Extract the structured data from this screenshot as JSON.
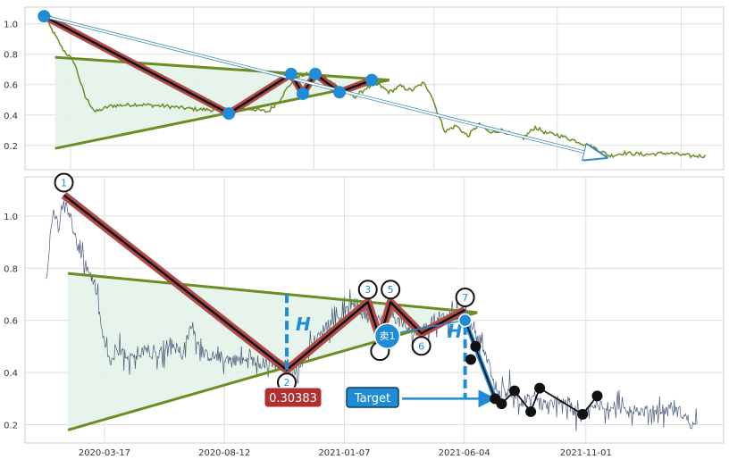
{
  "chart_data": [
    {
      "type": "line",
      "panel": "overview",
      "ylim": [
        0.04,
        1.11
      ],
      "yticks": [
        0.2,
        0.4,
        0.6,
        0.8,
        1.0
      ],
      "ytick_labels": [
        "0.2",
        "0.4",
        "0.6",
        "0.8",
        "1.0"
      ],
      "grid": true,
      "price_color": "#6b8e23",
      "price_keypoints": [
        {
          "x": "2020-01-10",
          "y": 1.05
        },
        {
          "x": "2020-01-22",
          "y": 0.95
        },
        {
          "x": "2020-02-05",
          "y": 0.83
        },
        {
          "x": "2020-02-20",
          "y": 0.75
        },
        {
          "x": "2020-03-06",
          "y": 0.52
        },
        {
          "x": "2020-03-20",
          "y": 0.42
        },
        {
          "x": "2020-04-10",
          "y": 0.46
        },
        {
          "x": "2020-05-15",
          "y": 0.47
        },
        {
          "x": "2020-06-20",
          "y": 0.46
        },
        {
          "x": "2020-07-30",
          "y": 0.44
        },
        {
          "x": "2020-09-10",
          "y": 0.43
        },
        {
          "x": "2020-10-20",
          "y": 0.44
        },
        {
          "x": "2020-11-10",
          "y": 0.42
        },
        {
          "x": "2020-11-25",
          "y": 0.49
        },
        {
          "x": "2020-12-10",
          "y": 0.6
        },
        {
          "x": "2020-12-25",
          "y": 0.66
        },
        {
          "x": "2021-01-15",
          "y": 0.68
        },
        {
          "x": "2021-02-05",
          "y": 0.62
        },
        {
          "x": "2021-02-20",
          "y": 0.56
        },
        {
          "x": "2021-03-10",
          "y": 0.52
        },
        {
          "x": "2021-03-25",
          "y": 0.58
        },
        {
          "x": "2021-04-10",
          "y": 0.6
        },
        {
          "x": "2021-04-25",
          "y": 0.55
        },
        {
          "x": "2021-05-10",
          "y": 0.59
        },
        {
          "x": "2021-05-25",
          "y": 0.56
        },
        {
          "x": "2021-06-10",
          "y": 0.61
        },
        {
          "x": "2021-06-20",
          "y": 0.55
        },
        {
          "x": "2021-07-01",
          "y": 0.4
        },
        {
          "x": "2021-07-10",
          "y": 0.29
        },
        {
          "x": "2021-07-25",
          "y": 0.33
        },
        {
          "x": "2021-08-10",
          "y": 0.26
        },
        {
          "x": "2021-08-25",
          "y": 0.34
        },
        {
          "x": "2021-09-10",
          "y": 0.28
        },
        {
          "x": "2021-09-25",
          "y": 0.3
        },
        {
          "x": "2021-10-10",
          "y": 0.27
        },
        {
          "x": "2021-10-25",
          "y": 0.25
        },
        {
          "x": "2021-11-10",
          "y": 0.32
        },
        {
          "x": "2021-11-25",
          "y": 0.28
        },
        {
          "x": "2021-12-10",
          "y": 0.27
        },
        {
          "x": "2022-01-10",
          "y": 0.22
        },
        {
          "x": "2022-02-01",
          "y": 0.18
        },
        {
          "x": "2022-02-20",
          "y": 0.13
        },
        {
          "x": "2022-03-10",
          "y": 0.15
        },
        {
          "x": "2022-04-10",
          "y": 0.14
        },
        {
          "x": "2022-05-10",
          "y": 0.15
        },
        {
          "x": "2022-06-10",
          "y": 0.13
        },
        {
          "x": "2022-06-30",
          "y": 0.13
        }
      ],
      "zigzag_points": [
        {
          "x": "2020-01-10",
          "y": 1.05
        },
        {
          "x": "2020-09-18",
          "y": 0.41
        },
        {
          "x": "2020-12-12",
          "y": 0.67
        },
        {
          "x": "2020-12-28",
          "y": 0.54
        },
        {
          "x": "2021-01-14",
          "y": 0.67
        },
        {
          "x": "2021-02-16",
          "y": 0.55
        },
        {
          "x": "2021-04-01",
          "y": 0.63
        }
      ],
      "triangle": {
        "upper_start": {
          "x": "2020-01-25",
          "y": 0.78
        },
        "lower_start": {
          "x": "2020-01-25",
          "y": 0.18
        },
        "apex": {
          "x": "2021-04-25",
          "y": 0.63
        }
      },
      "trend_arrow": {
        "from": {
          "x": "2020-01-10",
          "y": 1.05
        },
        "to": {
          "x": "2022-02-15",
          "y": 0.12
        }
      }
    },
    {
      "type": "line",
      "panel": "detail",
      "ylim": [
        0.13,
        1.15
      ],
      "yticks": [
        0.2,
        0.4,
        0.6,
        0.8,
        1.0
      ],
      "ytick_labels": [
        "0.2",
        "0.4",
        "0.6",
        "0.8",
        "1.0"
      ],
      "xticks": [
        "2020-03-17",
        "2020-08-12",
        "2021-01-07",
        "2021-06-04",
        "2021-11-01"
      ],
      "grid": true,
      "price_color": "#4a5a78",
      "price_keypoints": [
        {
          "x": "2020-01-05",
          "y": 0.74
        },
        {
          "x": "2020-01-10",
          "y": 0.92
        },
        {
          "x": "2020-01-15",
          "y": 1.02
        },
        {
          "x": "2020-01-20",
          "y": 0.96
        },
        {
          "x": "2020-01-27",
          "y": 1.08
        },
        {
          "x": "2020-02-05",
          "y": 0.98
        },
        {
          "x": "2020-02-15",
          "y": 0.86
        },
        {
          "x": "2020-02-25",
          "y": 0.8
        },
        {
          "x": "2020-03-05",
          "y": 0.74
        },
        {
          "x": "2020-03-14",
          "y": 0.56
        },
        {
          "x": "2020-03-22",
          "y": 0.44
        },
        {
          "x": "2020-04-05",
          "y": 0.48
        },
        {
          "x": "2020-04-20",
          "y": 0.45
        },
        {
          "x": "2020-05-05",
          "y": 0.5
        },
        {
          "x": "2020-05-20",
          "y": 0.46
        },
        {
          "x": "2020-06-05",
          "y": 0.52
        },
        {
          "x": "2020-06-20",
          "y": 0.47
        },
        {
          "x": "2020-07-03",
          "y": 0.58
        },
        {
          "x": "2020-07-15",
          "y": 0.47
        },
        {
          "x": "2020-08-01",
          "y": 0.46
        },
        {
          "x": "2020-08-25",
          "y": 0.45
        },
        {
          "x": "2020-09-20",
          "y": 0.44
        },
        {
          "x": "2020-10-10",
          "y": 0.43
        },
        {
          "x": "2020-10-25",
          "y": 0.44
        },
        {
          "x": "2020-11-05",
          "y": 0.4
        },
        {
          "x": "2020-11-20",
          "y": 0.47
        },
        {
          "x": "2020-12-05",
          "y": 0.54
        },
        {
          "x": "2020-12-20",
          "y": 0.59
        },
        {
          "x": "2021-01-05",
          "y": 0.62
        },
        {
          "x": "2021-01-20",
          "y": 0.66
        },
        {
          "x": "2021-02-05",
          "y": 0.61
        },
        {
          "x": "2021-02-20",
          "y": 0.6
        },
        {
          "x": "2021-03-05",
          "y": 0.63
        },
        {
          "x": "2021-03-20",
          "y": 0.58
        },
        {
          "x": "2021-04-05",
          "y": 0.55
        },
        {
          "x": "2021-04-20",
          "y": 0.57
        },
        {
          "x": "2021-05-05",
          "y": 0.59
        },
        {
          "x": "2021-05-20",
          "y": 0.62
        },
        {
          "x": "2021-06-05",
          "y": 0.63
        },
        {
          "x": "2021-06-15",
          "y": 0.58
        },
        {
          "x": "2021-06-25",
          "y": 0.52
        },
        {
          "x": "2021-07-05",
          "y": 0.42
        },
        {
          "x": "2021-07-15",
          "y": 0.31
        },
        {
          "x": "2021-07-30",
          "y": 0.33
        },
        {
          "x": "2021-08-15",
          "y": 0.29
        },
        {
          "x": "2021-08-30",
          "y": 0.31
        },
        {
          "x": "2021-09-15",
          "y": 0.27
        },
        {
          "x": "2021-09-30",
          "y": 0.3
        },
        {
          "x": "2021-10-15",
          "y": 0.26
        },
        {
          "x": "2021-10-30",
          "y": 0.24
        },
        {
          "x": "2021-11-15",
          "y": 0.28
        },
        {
          "x": "2021-12-01",
          "y": 0.27
        },
        {
          "x": "2021-12-20",
          "y": 0.26
        },
        {
          "x": "2022-01-10",
          "y": 0.25
        },
        {
          "x": "2022-02-01",
          "y": 0.26
        },
        {
          "x": "2022-02-25",
          "y": 0.25
        },
        {
          "x": "2022-03-10",
          "y": 0.21
        },
        {
          "x": "2022-03-18",
          "y": 0.18
        }
      ],
      "zigzag_points": [
        {
          "x": "2020-01-27",
          "y": 1.08,
          "label": "1"
        },
        {
          "x": "2020-10-28",
          "y": 0.41,
          "label": "2"
        },
        {
          "x": "2021-02-05",
          "y": 0.67,
          "label": "3"
        },
        {
          "x": "2021-02-20",
          "y": 0.53,
          "label": ""
        },
        {
          "x": "2021-03-05",
          "y": 0.67,
          "label": "5"
        },
        {
          "x": "2021-04-12",
          "y": 0.55,
          "label": "6"
        },
        {
          "x": "2021-06-05",
          "y": 0.64,
          "label": "7"
        }
      ],
      "triangle": {
        "upper_start": {
          "x": "2020-02-01",
          "y": 0.78
        },
        "lower_start": {
          "x": "2020-02-01",
          "y": 0.18
        },
        "apex": {
          "x": "2021-06-20",
          "y": 0.63
        }
      },
      "height_markers": [
        {
          "x": "2020-10-28",
          "y_from": 0.41,
          "y_to": 0.7,
          "label": "H"
        },
        {
          "x": "2021-06-05",
          "y_from": 0.63,
          "y_to": 0.3,
          "label": "H"
        }
      ],
      "signal": {
        "x": "2021-03-01",
        "y": 0.54,
        "label": "卖1",
        "color": "#1f8dd6"
      },
      "sell_entry": {
        "x": "2021-06-05",
        "y": 0.6
      },
      "target": {
        "label": "Target",
        "value_label": "0.30383",
        "value": 0.30383,
        "arrow_to": {
          "x": "2021-07-15",
          "y": 0.3
        }
      },
      "projection_points": [
        {
          "x": "2021-06-12",
          "y": 0.45
        },
        {
          "x": "2021-06-18",
          "y": 0.5
        },
        {
          "x": "2021-07-12",
          "y": 0.3
        },
        {
          "x": "2021-07-20",
          "y": 0.28
        },
        {
          "x": "2021-08-05",
          "y": 0.33
        },
        {
          "x": "2021-08-25",
          "y": 0.25
        },
        {
          "x": "2021-09-05",
          "y": 0.34
        },
        {
          "x": "2021-10-28",
          "y": 0.24
        },
        {
          "x": "2021-11-15",
          "y": 0.31
        }
      ],
      "colors": {
        "zigzag": "#b34a4a",
        "triangle": "#6b8e23",
        "fill": "#e3f2e7",
        "accent": "#1f8dd6",
        "target_box": "#1f8dd6",
        "value_box": "#b22f2f"
      }
    }
  ]
}
